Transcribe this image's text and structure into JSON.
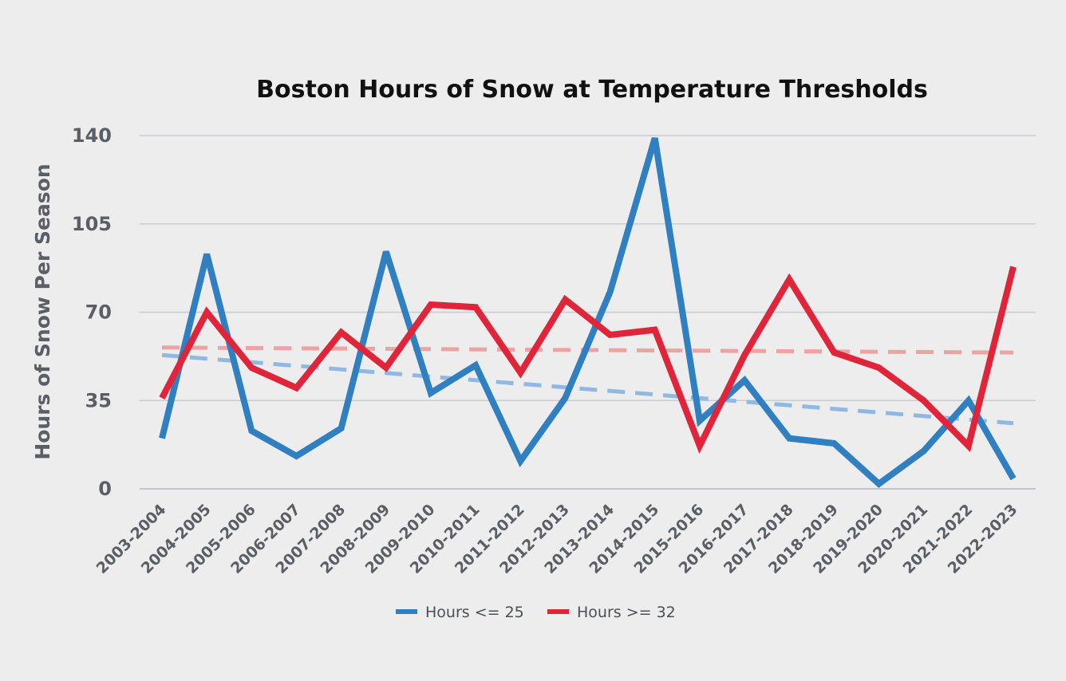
{
  "chart_data": {
    "type": "line",
    "title": "Boston Hours of Snow at Temperature Thresholds",
    "xlabel": "",
    "ylabel": "Hours of Snow Per Season",
    "ylim": [
      0,
      140
    ],
    "yticks": [
      "0",
      "35",
      "70",
      "105",
      "140"
    ],
    "ytick_values": [
      0,
      35,
      70,
      105,
      140
    ],
    "grid": true,
    "legend_position": "bottom-center",
    "categories": [
      "2003-2004",
      "2004-2005",
      "2005-2006",
      "2006-2007",
      "2007-2008",
      "2008-2009",
      "2009-2010",
      "2010-2011",
      "2011-2012",
      "2012-2013",
      "2013-2014",
      "2014-2015",
      "2015-2016",
      "2016-2017",
      "2017-2018",
      "2018-2019",
      "2019-2020",
      "2020-2021",
      "2021-2022",
      "2022-2023"
    ],
    "series": [
      {
        "name": "Hours <= 25",
        "color": "#2f7fc1",
        "values": [
          20,
          93,
          23,
          13,
          24,
          94,
          38,
          49,
          11,
          36,
          78,
          139,
          27,
          43,
          20,
          18,
          2,
          15,
          35,
          4
        ]
      },
      {
        "name": "Hours >= 32",
        "color": "#e0253a",
        "values": [
          36,
          70,
          48,
          40,
          62,
          48,
          73,
          72,
          46,
          75,
          61,
          63,
          17,
          53,
          83,
          54,
          48,
          35,
          17,
          88
        ]
      }
    ],
    "trendlines": [
      {
        "series": "Hours <= 25",
        "color": "#8fb9e2",
        "start": 53,
        "end": 26
      },
      {
        "series": "Hours >= 32",
        "color": "#eea3a3",
        "start": 56,
        "end": 54
      }
    ]
  }
}
